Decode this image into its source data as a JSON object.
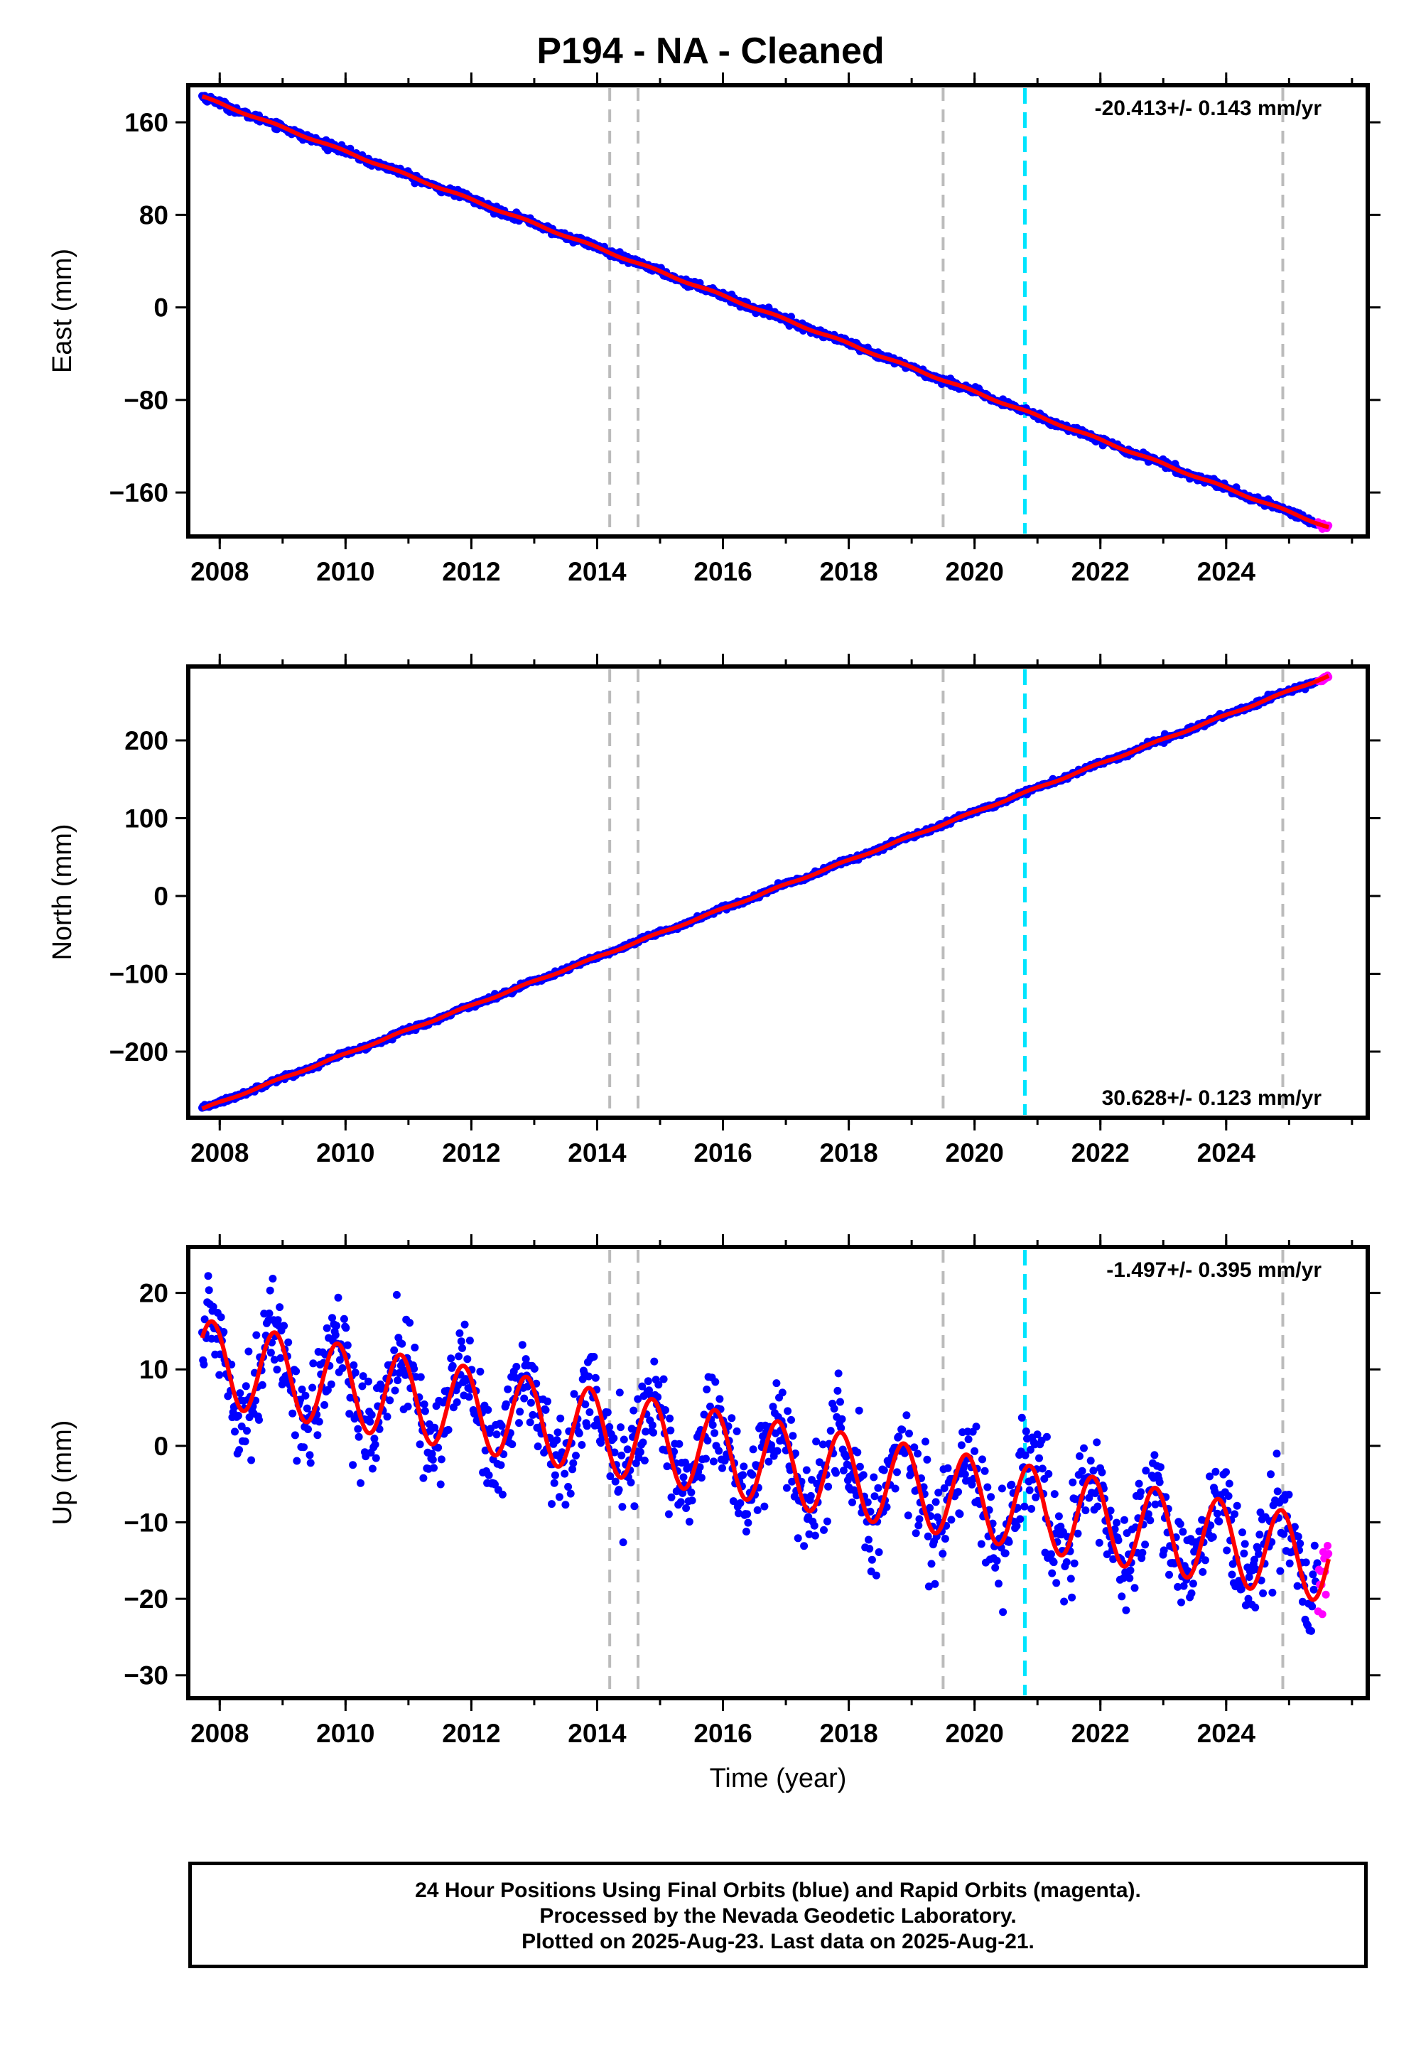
{
  "title": "P194  - NA - Cleaned",
  "footer": {
    "line1": "24 Hour Positions Using Final Orbits (blue) and Rapid Orbits (magenta).",
    "line2": "Processed by the Nevada Geodetic Laboratory.",
    "line3": "Plotted on 2025-Aug-23. Last data on 2025-Aug-21."
  },
  "colors": {
    "final_orbits": "#0000ff",
    "rapid_orbits": "#ff00ff",
    "model": "#ff0000",
    "event_lines": "#bbbbbb",
    "highlight_line": "#00e5ff"
  },
  "chart_data": [
    {
      "type": "scatter",
      "panel": "east",
      "ylabel": "East (mm)",
      "xlabel": "",
      "xlim": [
        2007.5,
        2026.25
      ],
      "ylim": [
        -198,
        192
      ],
      "xticks": [
        2008,
        2010,
        2012,
        2014,
        2016,
        2018,
        2020,
        2022,
        2024
      ],
      "yticks": [
        160,
        80,
        0,
        -80,
        -160
      ],
      "rate_text": "-20.413+/- 0.143 mm/yr",
      "rate_position": "top-right",
      "model": {
        "start": [
          2007.72,
          182
        ],
        "end": [
          2025.63,
          -190
        ],
        "seasonal_amplitude": 0.8
      },
      "data_range_x": [
        2007.72,
        2025.63
      ],
      "rapid_orbits_x": [
        2025.45,
        2025.63
      ],
      "noise_mm": 1.5,
      "event_lines": [
        2014.2,
        2014.65,
        2019.5,
        2024.9
      ],
      "highlight_line": 2020.8
    },
    {
      "type": "scatter",
      "panel": "north",
      "ylabel": "North (mm)",
      "xlabel": "",
      "xlim": [
        2007.5,
        2026.25
      ],
      "ylim": [
        -285,
        295
      ],
      "xticks": [
        2008,
        2010,
        2012,
        2014,
        2016,
        2018,
        2020,
        2022,
        2024
      ],
      "yticks": [
        200,
        100,
        0,
        -100,
        -200
      ],
      "rate_text": "30.628+/- 0.123 mm/yr",
      "rate_position": "bottom-right",
      "model": {
        "start": [
          2007.72,
          -274
        ],
        "end": [
          2025.63,
          283
        ],
        "seasonal_amplitude": 1.0
      },
      "data_range_x": [
        2007.72,
        2025.63
      ],
      "rapid_orbits_x": [
        2025.45,
        2025.63
      ],
      "noise_mm": 1.5,
      "event_lines": [
        2014.2,
        2014.65,
        2019.5,
        2024.9
      ],
      "highlight_line": 2020.8
    },
    {
      "type": "scatter",
      "panel": "up",
      "ylabel": "Up (mm)",
      "xlabel": "Time (year)",
      "xlim": [
        2007.5,
        2026.25
      ],
      "ylim": [
        -33,
        26
      ],
      "xticks": [
        2008,
        2010,
        2012,
        2014,
        2016,
        2018,
        2020,
        2022,
        2024
      ],
      "yticks": [
        20,
        10,
        0,
        -10,
        -20,
        -30
      ],
      "rate_text": "-1.497+/- 0.395 mm/yr",
      "rate_position": "top-right",
      "model": {
        "start": [
          2007.72,
          11
        ],
        "end": [
          2025.63,
          -15
        ],
        "seasonal_amplitude": 5.5
      },
      "data_range_x": [
        2007.72,
        2025.63
      ],
      "rapid_orbits_x": [
        2025.45,
        2025.63
      ],
      "noise_mm": 3.2,
      "event_lines": [
        2014.2,
        2014.65,
        2019.5,
        2024.9
      ],
      "highlight_line": 2020.8
    }
  ]
}
